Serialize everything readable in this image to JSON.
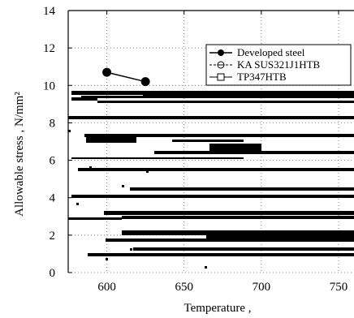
{
  "chart_data": {
    "type": "line",
    "xlabel": "Temperature ,",
    "ylabel": "Allowable stress , N/mm²",
    "xlim": [
      575,
      760
    ],
    "ylim": [
      0,
      14
    ],
    "x_ticks": [
      600,
      650,
      700,
      750
    ],
    "y_ticks": [
      0,
      2,
      4,
      6,
      8,
      10,
      12,
      14
    ],
    "grid": "dotted",
    "legend_position": "top-right",
    "series": [
      {
        "name": "Developed steel",
        "marker": "filled-circle",
        "x": [
          600,
          625
        ],
        "y": [
          10.7,
          10.2
        ]
      },
      {
        "name": "KA SUS321J1HTB",
        "marker": "open-circle-dashed",
        "x": [],
        "y": []
      },
      {
        "name": "TP347HTB",
        "marker": "open-square",
        "x": [],
        "y": []
      }
    ],
    "artifact_color": "#000000"
  }
}
